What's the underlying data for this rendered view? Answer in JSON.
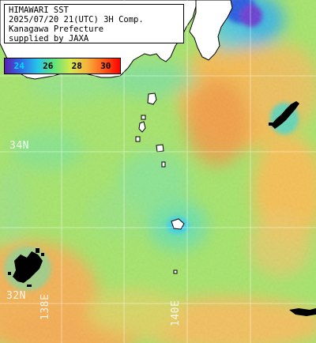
{
  "title": {
    "lines": [
      "HIMAWARI SST",
      "2025/07/20 21(UTC) 3H Comp.",
      "Kanagawa Prefecture",
      "supplied by JAXA"
    ]
  },
  "colorbar": {
    "ticks": [
      {
        "label": "24",
        "value": 24,
        "color": "#7a2bd6",
        "text_color": "#00e0ff"
      },
      {
        "label": "26",
        "value": 26,
        "color": "#22c8e6",
        "text_color": "#000000"
      },
      {
        "label": "28",
        "value": 28,
        "color": "#8ee85c",
        "text_color": "#000000"
      },
      {
        "label": "30",
        "value": 30,
        "color": "#ff2f00",
        "text_color": "#000000"
      }
    ],
    "unit": ""
  },
  "grid_labels": {
    "lat_34": "34N",
    "lat_32": "32N",
    "lon_138": "138E",
    "lon_140": "140E"
  },
  "colors": {
    "land": "#ffffff",
    "cloud_mask": "#000000",
    "grid": "#ffffff",
    "sea_base": "#a8e86f"
  }
}
